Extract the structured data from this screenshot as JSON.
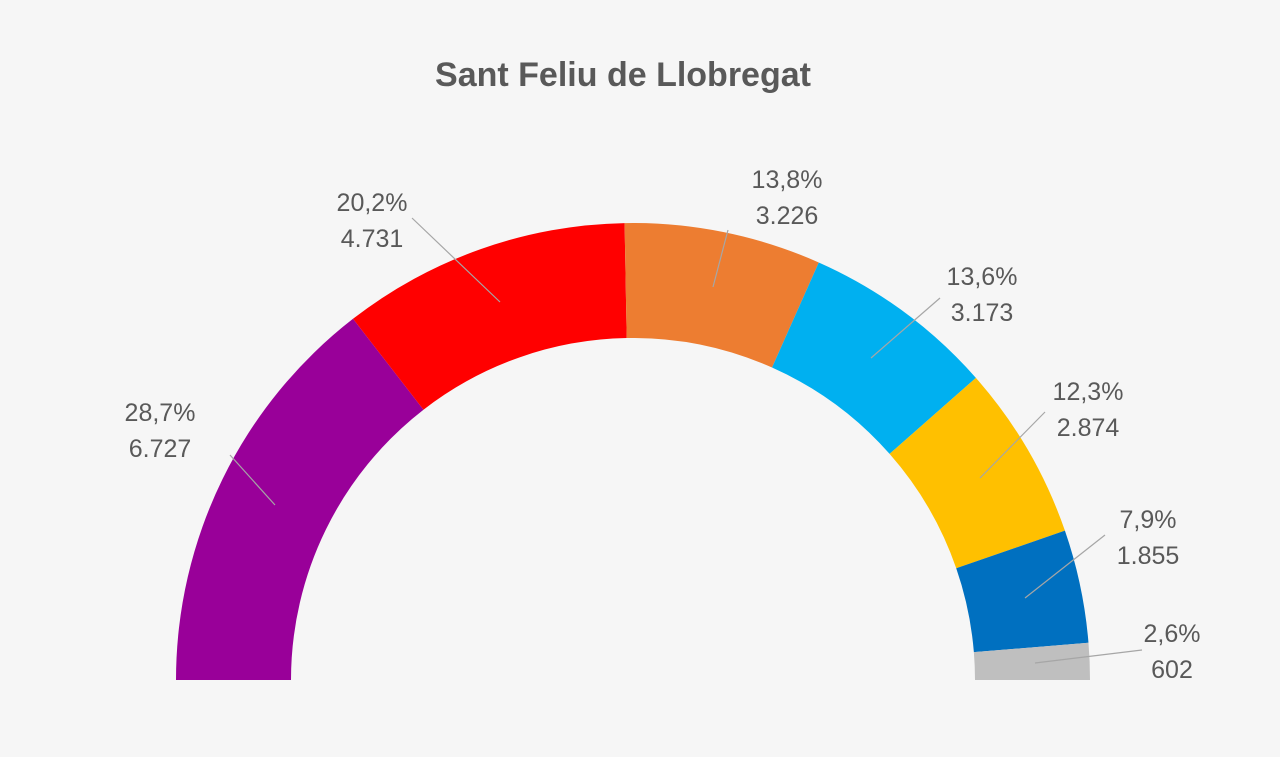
{
  "chart_data": {
    "type": "pie",
    "variant": "semicircle-donut",
    "title": "Sant Feliu de Llobregat",
    "legend": "none",
    "slices": [
      {
        "percent_label": "28,7%",
        "value_label": "6.727",
        "value": 6727,
        "color": "#990099"
      },
      {
        "percent_label": "20,2%",
        "value_label": "4.731",
        "value": 4731,
        "color": "#ff0000"
      },
      {
        "percent_label": "13,8%",
        "value_label": "3.226",
        "value": 3226,
        "color": "#ed7d31"
      },
      {
        "percent_label": "13,6%",
        "value_label": "3.173",
        "value": 3173,
        "color": "#00b0f0"
      },
      {
        "percent_label": "12,3%",
        "value_label": "2.874",
        "value": 2874,
        "color": "#ffc000"
      },
      {
        "percent_label": "7,9%",
        "value_label": "1.855",
        "value": 1855,
        "color": "#0070c0"
      },
      {
        "percent_label": "2,6%",
        "value_label": "602",
        "value": 602,
        "color": "#bfbfbf"
      }
    ]
  }
}
